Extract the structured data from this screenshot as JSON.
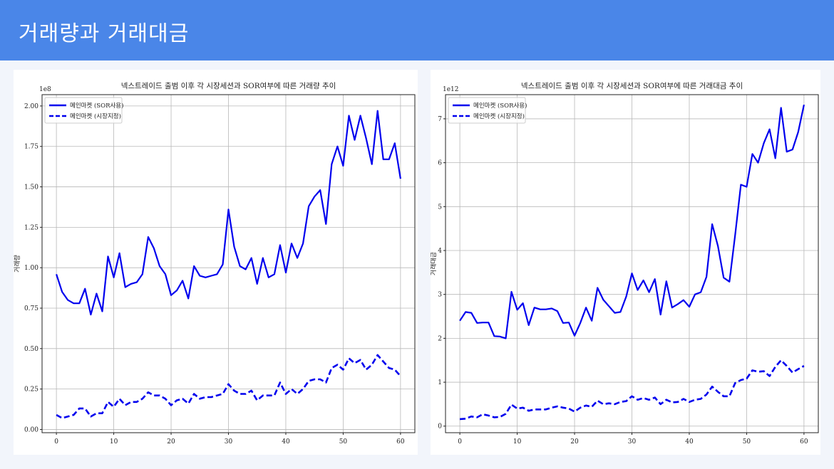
{
  "slide": {
    "title": "거래량과 거래대금"
  },
  "colors": {
    "header": "#4a86e8",
    "series": "#0000ee",
    "grid": "#b8b8b8"
  },
  "chart_data": [
    {
      "type": "line",
      "title": "넥스트레이드 출범 이후 각 시장세션과 SOR여부에 따른 거래량 추이",
      "xlabel": "",
      "ylabel": "거래량",
      "exponent_label": "1e8",
      "xlim": [
        -2.5,
        62.5
      ],
      "ylim": [
        -0.02,
        2.07
      ],
      "xticks": [
        0,
        10,
        20,
        30,
        40,
        50,
        60
      ],
      "xtick_labels": [
        "0",
        "10",
        "20",
        "30",
        "40",
        "50",
        "60"
      ],
      "yticks": [
        0,
        0.25,
        0.5,
        0.75,
        1.0,
        1.25,
        1.5,
        1.75,
        2.0
      ],
      "ytick_labels": [
        "0.00",
        "0.25",
        "0.50",
        "0.75",
        "1.00",
        "1.25",
        "1.50",
        "1.75",
        "2.00"
      ],
      "grid": true,
      "legend_position": "top-left",
      "x": [
        0,
        1,
        2,
        3,
        4,
        5,
        6,
        7,
        8,
        9,
        10,
        11,
        12,
        13,
        14,
        15,
        16,
        17,
        18,
        19,
        20,
        21,
        22,
        23,
        24,
        25,
        26,
        27,
        28,
        29,
        30,
        31,
        32,
        33,
        34,
        35,
        36,
        37,
        38,
        39,
        40,
        41,
        42,
        43,
        44,
        45,
        46,
        47,
        48,
        49,
        50,
        51,
        52,
        53,
        54,
        55,
        56,
        57,
        58,
        59,
        60
      ],
      "series": [
        {
          "name": "메인마켓 (SOR사용)",
          "style": "solid",
          "values": [
            0.96,
            0.85,
            0.8,
            0.78,
            0.78,
            0.87,
            0.71,
            0.84,
            0.73,
            1.07,
            0.94,
            1.09,
            0.88,
            0.9,
            0.91,
            0.96,
            1.19,
            1.12,
            1.01,
            0.96,
            0.83,
            0.86,
            0.92,
            0.81,
            1.01,
            0.95,
            0.94,
            0.95,
            0.96,
            1.02,
            1.36,
            1.13,
            1.01,
            0.99,
            1.06,
            0.9,
            1.06,
            0.94,
            0.96,
            1.14,
            0.97,
            1.15,
            1.06,
            1.15,
            1.38,
            1.44,
            1.48,
            1.27,
            1.64,
            1.75,
            1.63,
            1.94,
            1.79,
            1.94,
            1.8,
            1.64,
            1.97,
            1.67,
            1.67,
            1.77,
            1.55
          ]
        },
        {
          "name": "메인마켓 (시장지정)",
          "style": "dashed",
          "values": [
            0.09,
            0.07,
            0.08,
            0.09,
            0.13,
            0.13,
            0.08,
            0.1,
            0.1,
            0.17,
            0.14,
            0.19,
            0.15,
            0.17,
            0.17,
            0.19,
            0.23,
            0.21,
            0.21,
            0.19,
            0.15,
            0.18,
            0.19,
            0.16,
            0.22,
            0.19,
            0.2,
            0.2,
            0.21,
            0.22,
            0.28,
            0.24,
            0.22,
            0.22,
            0.24,
            0.18,
            0.21,
            0.21,
            0.21,
            0.29,
            0.22,
            0.25,
            0.22,
            0.25,
            0.3,
            0.31,
            0.31,
            0.29,
            0.38,
            0.4,
            0.37,
            0.44,
            0.41,
            0.43,
            0.37,
            0.4,
            0.46,
            0.42,
            0.38,
            0.37,
            0.33
          ]
        }
      ]
    },
    {
      "type": "line",
      "title": "넥스트레이드 출범 이후 각 시장세션과 SOR여부에 따른 거래대금 추이",
      "xlabel": "",
      "ylabel": "거래대금",
      "exponent_label": "1e12",
      "xlim": [
        -2.5,
        62.5
      ],
      "ylim": [
        -0.15,
        7.55
      ],
      "xticks": [
        0,
        10,
        20,
        30,
        40,
        50,
        60
      ],
      "xtick_labels": [
        "0",
        "10",
        "20",
        "30",
        "40",
        "50",
        "60"
      ],
      "yticks": [
        0,
        1,
        2,
        3,
        4,
        5,
        6,
        7
      ],
      "ytick_labels": [
        "0",
        "1",
        "2",
        "3",
        "4",
        "5",
        "6",
        "7"
      ],
      "grid": true,
      "legend_position": "top-left",
      "x": [
        0,
        1,
        2,
        3,
        4,
        5,
        6,
        7,
        8,
        9,
        10,
        11,
        12,
        13,
        14,
        15,
        16,
        17,
        18,
        19,
        20,
        21,
        22,
        23,
        24,
        25,
        26,
        27,
        28,
        29,
        30,
        31,
        32,
        33,
        34,
        35,
        36,
        37,
        38,
        39,
        40,
        41,
        42,
        43,
        44,
        45,
        46,
        47,
        48,
        49,
        50,
        51,
        52,
        53,
        54,
        55,
        56,
        57,
        58,
        59,
        60
      ],
      "series": [
        {
          "name": "메인마켓 (SOR사용)",
          "style": "solid",
          "values": [
            2.4,
            2.6,
            2.58,
            2.35,
            2.36,
            2.36,
            2.05,
            2.04,
            2.0,
            3.06,
            2.65,
            2.8,
            2.3,
            2.7,
            2.66,
            2.66,
            2.68,
            2.62,
            2.35,
            2.36,
            2.06,
            2.35,
            2.7,
            2.4,
            3.15,
            2.88,
            2.73,
            2.58,
            2.6,
            2.95,
            3.48,
            3.1,
            3.32,
            3.05,
            3.35,
            2.54,
            3.3,
            2.7,
            2.78,
            2.87,
            2.72,
            3.0,
            3.05,
            3.4,
            4.6,
            4.1,
            3.38,
            3.29,
            4.35,
            5.5,
            5.45,
            6.2,
            6.0,
            6.45,
            6.76,
            6.1,
            7.25,
            6.25,
            6.3,
            6.7,
            7.32
          ]
        },
        {
          "name": "메인마켓 (시장지정)",
          "style": "dashed",
          "values": [
            0.16,
            0.17,
            0.22,
            0.2,
            0.27,
            0.24,
            0.2,
            0.21,
            0.28,
            0.49,
            0.4,
            0.42,
            0.35,
            0.38,
            0.38,
            0.38,
            0.42,
            0.45,
            0.42,
            0.4,
            0.33,
            0.42,
            0.47,
            0.44,
            0.58,
            0.5,
            0.52,
            0.5,
            0.55,
            0.57,
            0.68,
            0.6,
            0.64,
            0.6,
            0.65,
            0.5,
            0.6,
            0.54,
            0.55,
            0.62,
            0.55,
            0.6,
            0.62,
            0.72,
            0.9,
            0.78,
            0.68,
            0.68,
            0.98,
            1.05,
            1.08,
            1.27,
            1.24,
            1.25,
            1.14,
            1.35,
            1.5,
            1.37,
            1.22,
            1.3,
            1.37
          ]
        }
      ]
    }
  ]
}
